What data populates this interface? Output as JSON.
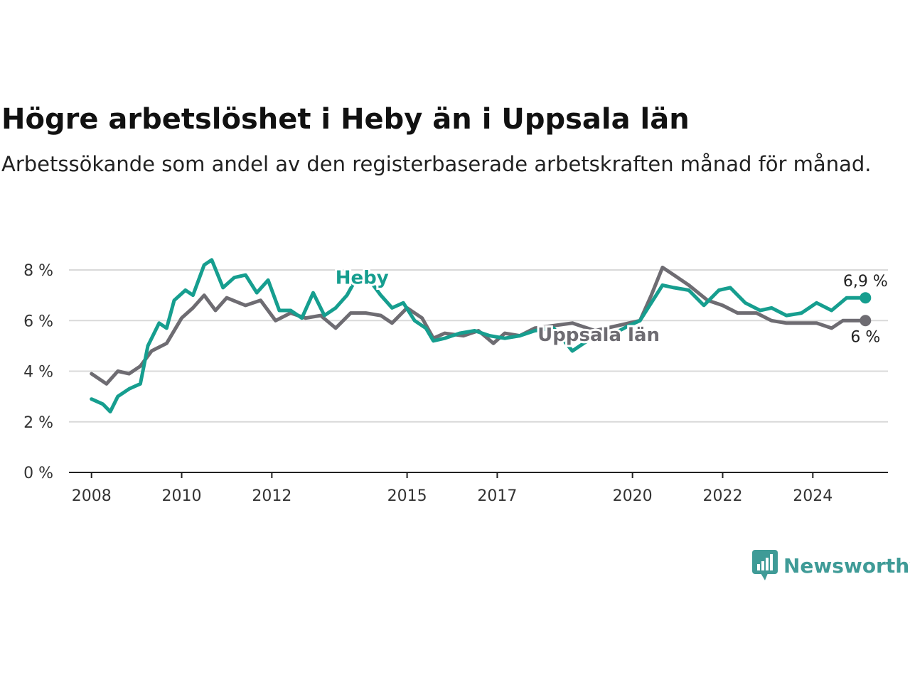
{
  "title": "Högre arbetslöshet i Heby än i Uppsala län",
  "subtitle": "Arbetssökande som andel av den registerbaserade arbetskraften månad för månad.",
  "brand": {
    "name": "Newsworthy",
    "icon": "newsworthy-logo-icon",
    "color": "#3f9b97"
  },
  "chart_data": {
    "type": "line",
    "title": "Högre arbetslöshet i Heby än i Uppsala län",
    "subtitle": "Arbetssökande som andel av den registerbaserade arbetskraften månad för månad.",
    "xlabel": "",
    "ylabel": "",
    "ylim": [
      0,
      8.5
    ],
    "xlim": [
      "2007-07",
      "2025-09"
    ],
    "y_ticks": [
      0,
      2,
      4,
      6,
      8
    ],
    "y_tick_labels": [
      "0 %",
      "2 %",
      "4 %",
      "6 %",
      "8 %"
    ],
    "x_ticks": [
      "2008-01",
      "2010-01",
      "2012-01",
      "2015-01",
      "2017-01",
      "2020-01",
      "2022-01",
      "2024-01"
    ],
    "x_tick_labels": [
      "2008",
      "2010",
      "2012",
      "2015",
      "2017",
      "2020",
      "2022",
      "2024"
    ],
    "grid": true,
    "legend": "inline labels",
    "series": [
      {
        "name": "Uppsala län",
        "color": "#6e6c72",
        "end_label": "6 %",
        "points": [
          [
            "2008-01",
            3.9
          ],
          [
            "2008-05",
            3.5
          ],
          [
            "2008-08",
            4.0
          ],
          [
            "2008-11",
            3.9
          ],
          [
            "2009-02",
            4.2
          ],
          [
            "2009-05",
            4.8
          ],
          [
            "2009-09",
            5.1
          ],
          [
            "2010-01",
            6.1
          ],
          [
            "2010-04",
            6.5
          ],
          [
            "2010-07",
            7.0
          ],
          [
            "2010-10",
            6.4
          ],
          [
            "2011-01",
            6.9
          ],
          [
            "2011-06",
            6.6
          ],
          [
            "2011-10",
            6.8
          ],
          [
            "2012-02",
            6.0
          ],
          [
            "2012-06",
            6.3
          ],
          [
            "2012-10",
            6.1
          ],
          [
            "2013-02",
            6.2
          ],
          [
            "2013-06",
            5.7
          ],
          [
            "2013-10",
            6.3
          ],
          [
            "2014-02",
            6.3
          ],
          [
            "2014-06",
            6.2
          ],
          [
            "2014-09",
            5.9
          ],
          [
            "2015-01",
            6.5
          ],
          [
            "2015-05",
            6.1
          ],
          [
            "2015-08",
            5.3
          ],
          [
            "2015-11",
            5.5
          ],
          [
            "2016-04",
            5.4
          ],
          [
            "2016-08",
            5.6
          ],
          [
            "2016-12",
            5.1
          ],
          [
            "2017-03",
            5.5
          ],
          [
            "2017-07",
            5.4
          ],
          [
            "2017-11",
            5.7
          ],
          [
            "2018-04",
            5.8
          ],
          [
            "2018-09",
            5.9
          ],
          [
            "2019-03",
            5.6
          ],
          [
            "2019-09",
            5.8
          ],
          [
            "2019-12",
            5.9
          ],
          [
            "2020-03",
            6.0
          ],
          [
            "2020-06",
            7.0
          ],
          [
            "2020-09",
            8.1
          ],
          [
            "2020-12",
            7.8
          ],
          [
            "2021-04",
            7.4
          ],
          [
            "2021-09",
            6.8
          ],
          [
            "2022-01",
            6.6
          ],
          [
            "2022-05",
            6.3
          ],
          [
            "2022-10",
            6.3
          ],
          [
            "2023-02",
            6.0
          ],
          [
            "2023-06",
            5.9
          ],
          [
            "2023-10",
            5.9
          ],
          [
            "2024-02",
            5.9
          ],
          [
            "2024-06",
            5.7
          ],
          [
            "2024-09",
            6.0
          ],
          [
            "2025-03",
            6.0
          ]
        ]
      },
      {
        "name": "Heby",
        "color": "#169e8f",
        "end_label": "6,9 %",
        "points": [
          [
            "2008-01",
            2.9
          ],
          [
            "2008-04",
            2.7
          ],
          [
            "2008-06",
            2.4
          ],
          [
            "2008-08",
            3.0
          ],
          [
            "2008-11",
            3.3
          ],
          [
            "2009-02",
            3.5
          ],
          [
            "2009-04",
            5.0
          ],
          [
            "2009-07",
            5.9
          ],
          [
            "2009-09",
            5.7
          ],
          [
            "2009-11",
            6.8
          ],
          [
            "2010-02",
            7.2
          ],
          [
            "2010-04",
            7.0
          ],
          [
            "2010-07",
            8.2
          ],
          [
            "2010-09",
            8.4
          ],
          [
            "2010-12",
            7.3
          ],
          [
            "2011-03",
            7.7
          ],
          [
            "2011-06",
            7.8
          ],
          [
            "2011-09",
            7.1
          ],
          [
            "2011-12",
            7.6
          ],
          [
            "2012-03",
            6.4
          ],
          [
            "2012-06",
            6.4
          ],
          [
            "2012-09",
            6.1
          ],
          [
            "2012-12",
            7.1
          ],
          [
            "2013-03",
            6.2
          ],
          [
            "2013-06",
            6.5
          ],
          [
            "2013-09",
            7.0
          ],
          [
            "2013-12",
            7.8
          ],
          [
            "2014-03",
            7.6
          ],
          [
            "2014-06",
            7.0
          ],
          [
            "2014-09",
            6.5
          ],
          [
            "2014-12",
            6.7
          ],
          [
            "2015-03",
            6.0
          ],
          [
            "2015-06",
            5.7
          ],
          [
            "2015-08",
            5.2
          ],
          [
            "2015-11",
            5.3
          ],
          [
            "2016-03",
            5.5
          ],
          [
            "2016-07",
            5.6
          ],
          [
            "2016-11",
            5.4
          ],
          [
            "2017-03",
            5.3
          ],
          [
            "2017-07",
            5.4
          ],
          [
            "2017-11",
            5.6
          ],
          [
            "2018-04",
            5.7
          ],
          [
            "2018-09",
            4.8
          ],
          [
            "2019-02",
            5.3
          ],
          [
            "2019-07",
            5.4
          ],
          [
            "2019-12",
            5.8
          ],
          [
            "2020-03",
            6.0
          ],
          [
            "2020-06",
            6.7
          ],
          [
            "2020-09",
            7.4
          ],
          [
            "2020-12",
            7.3
          ],
          [
            "2021-04",
            7.2
          ],
          [
            "2021-08",
            6.6
          ],
          [
            "2021-12",
            7.2
          ],
          [
            "2022-03",
            7.3
          ],
          [
            "2022-07",
            6.7
          ],
          [
            "2022-11",
            6.4
          ],
          [
            "2023-02",
            6.5
          ],
          [
            "2023-06",
            6.2
          ],
          [
            "2023-10",
            6.3
          ],
          [
            "2024-02",
            6.7
          ],
          [
            "2024-06",
            6.4
          ],
          [
            "2024-10",
            6.9
          ],
          [
            "2025-03",
            6.9
          ]
        ]
      }
    ]
  }
}
